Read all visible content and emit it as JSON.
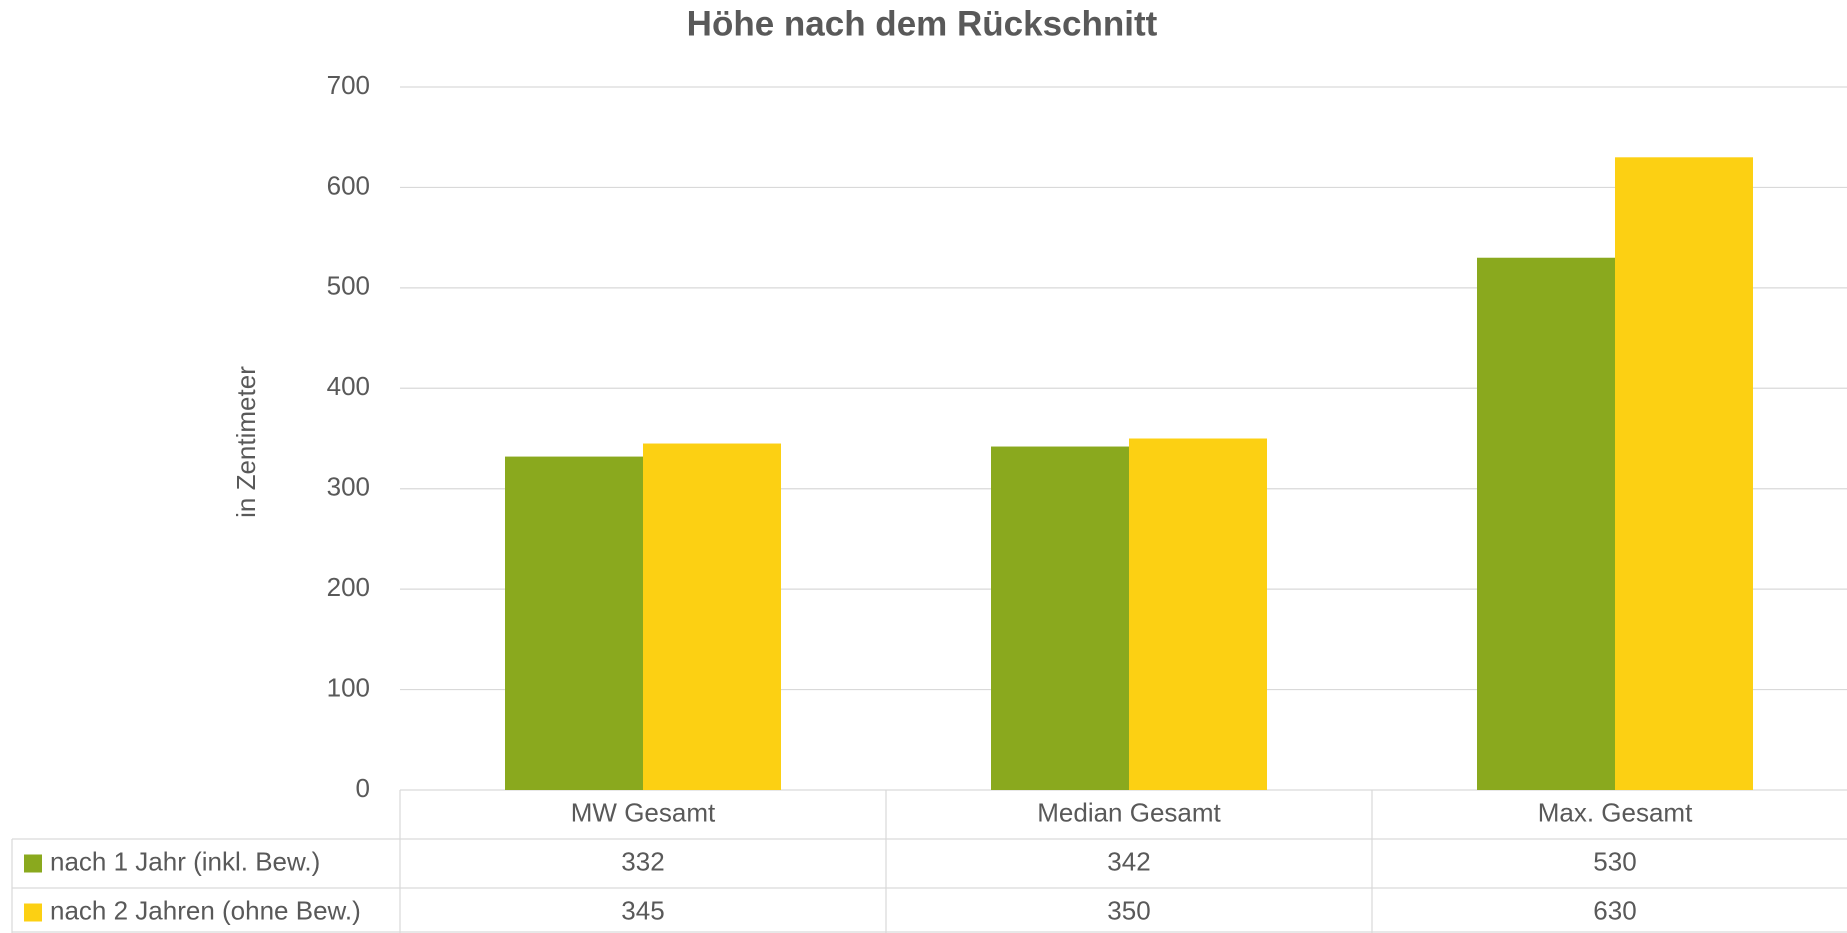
{
  "chart_data": {
    "type": "bar",
    "title": "Höhe nach dem Rückschnitt",
    "y_label": "in Zentimeter",
    "categories": [
      "MW Gesamt",
      "Median Gesamt",
      "Max. Gesamt"
    ],
    "series": [
      {
        "name": "nach 1 Jahr (inkl. Bew.)",
        "color": "#8aa91e",
        "values": [
          332,
          342,
          530
        ]
      },
      {
        "name": "nach 2 Jahren (ohne Bew.)",
        "color": "#fcd013",
        "values": [
          345,
          350,
          630
        ]
      }
    ],
    "ylim": [
      0,
      700
    ],
    "yticks": [
      0,
      100,
      200,
      300,
      400,
      500,
      600,
      700
    ],
    "grid": true,
    "data_table": true
  }
}
